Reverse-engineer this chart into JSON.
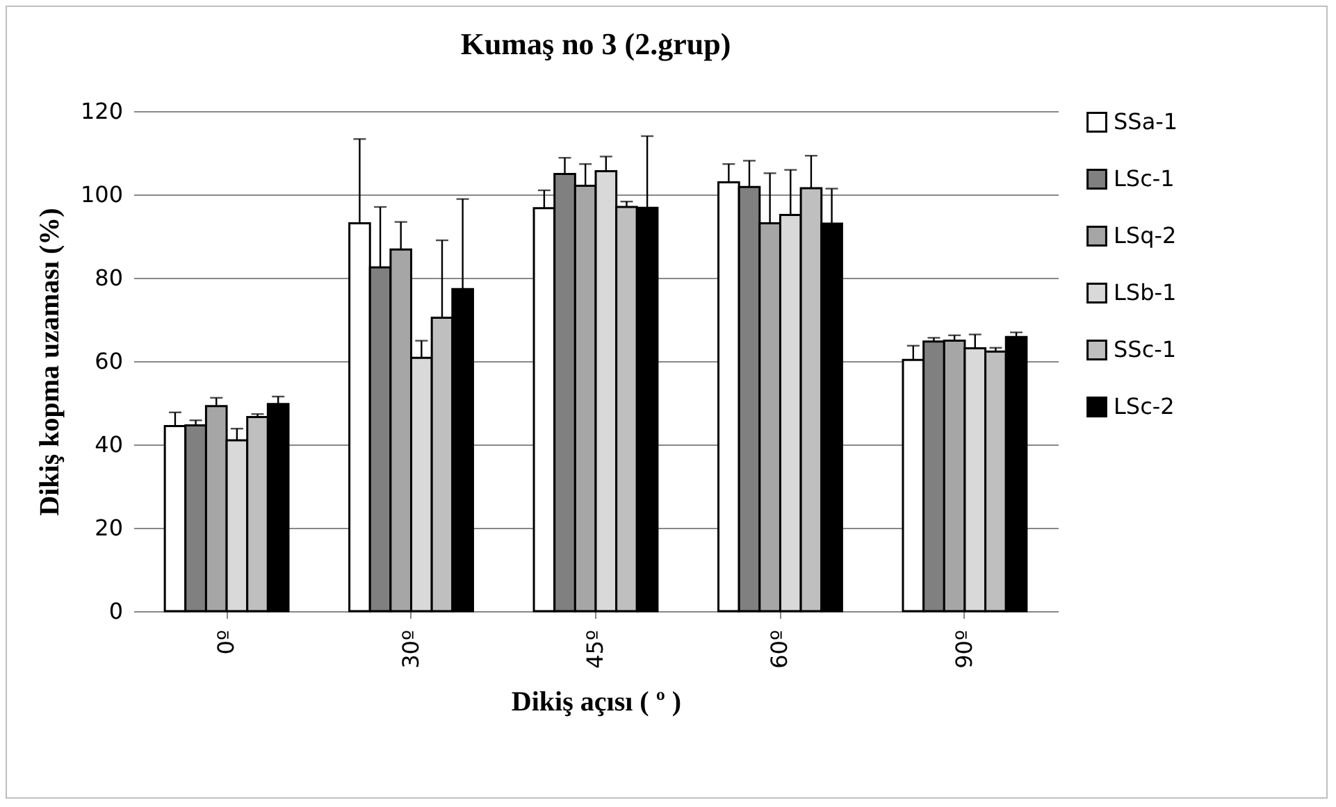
{
  "chart_data": {
    "type": "bar",
    "title": "Kumaş no 3 (2.grup)",
    "xlabel": "Dikiş açısı ( º )",
    "ylabel": "Dikiş kopma uzaması (%)",
    "categories": [
      "0º",
      "30º",
      "45º",
      "60º",
      "90º"
    ],
    "ylim": [
      0,
      120
    ],
    "yticks": [
      0,
      20,
      40,
      60,
      80,
      100,
      120
    ],
    "grid": "y",
    "legend": "right",
    "series": [
      {
        "name": "SSa-1",
        "color": "#ffffff",
        "values": [
          44.4,
          93.1,
          96.7,
          102.9,
          60.3
        ],
        "errors": [
          [
            44.4,
            47.7
          ],
          [
            93.1,
            113.3
          ],
          [
            96.7,
            101.0
          ],
          [
            102.9,
            107.3
          ],
          [
            60.3,
            63.7
          ]
        ]
      },
      {
        "name": "LSc-1",
        "color": "#808080",
        "values": [
          44.6,
          82.5,
          104.9,
          101.8,
          64.7
        ],
        "errors": [
          [
            44.6,
            45.8
          ],
          [
            82.5,
            97.0
          ],
          [
            104.9,
            108.8
          ],
          [
            101.8,
            108.1
          ],
          [
            64.7,
            65.6
          ]
        ]
      },
      {
        "name": "LSq-2",
        "color": "#a6a6a6",
        "values": [
          49.2,
          86.8,
          102.1,
          93.1,
          64.9
        ],
        "errors": [
          [
            49.2,
            51.2
          ],
          [
            86.8,
            93.4
          ],
          [
            102.1,
            107.3
          ],
          [
            93.1,
            105.1
          ],
          [
            64.9,
            66.2
          ]
        ]
      },
      {
        "name": "LSb-1",
        "color": "#d9d9d9",
        "values": [
          41.0,
          60.8,
          105.6,
          95.1,
          63.1
        ],
        "errors": [
          [
            41.0,
            43.8
          ],
          [
            60.8,
            64.9
          ],
          [
            105.6,
            109.1
          ],
          [
            95.1,
            105.9
          ],
          [
            63.1,
            66.4
          ]
        ]
      },
      {
        "name": "SSc-1",
        "color": "#bfbfbf",
        "values": [
          46.6,
          70.4,
          97.0,
          101.5,
          62.3
        ],
        "errors": [
          [
            46.6,
            47.3
          ],
          [
            70.4,
            89.0
          ],
          [
            97.0,
            98.3
          ],
          [
            101.5,
            109.3
          ],
          [
            62.3,
            63.2
          ]
        ]
      },
      {
        "name": "LSc-2",
        "color": "#000000",
        "values": [
          49.7,
          77.3,
          96.8,
          93.0,
          65.8
        ],
        "errors": [
          [
            49.7,
            51.5
          ],
          [
            77.3,
            98.9
          ],
          [
            96.8,
            114.0
          ],
          [
            93.0,
            101.4
          ],
          [
            65.8,
            66.9
          ]
        ]
      }
    ]
  }
}
